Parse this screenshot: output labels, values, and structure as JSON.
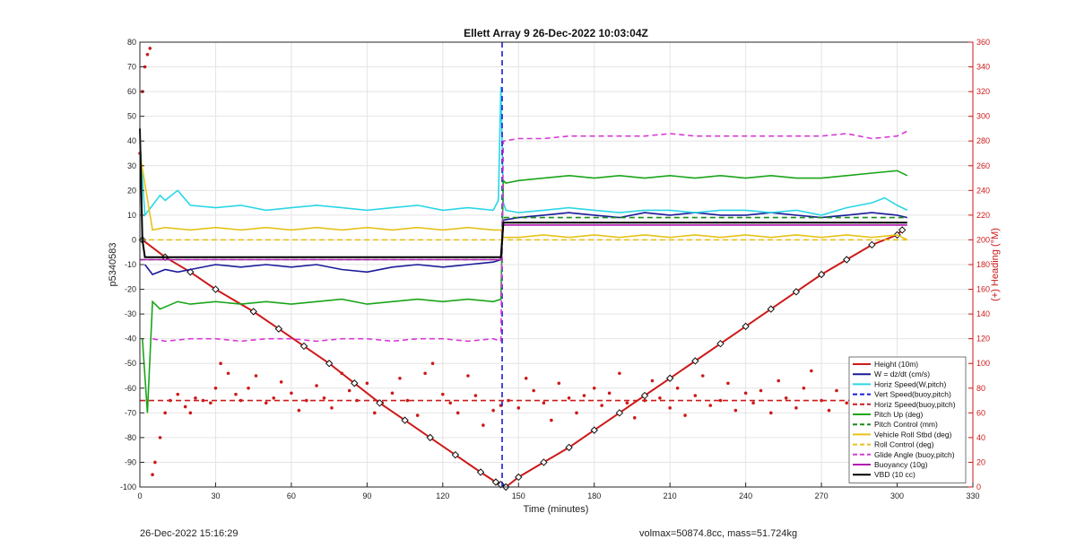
{
  "chart_data": {
    "type": "line",
    "title": "Ellett Array 9 26-Dec-2022 10:03:04Z",
    "xlabel": "Time (minutes)",
    "ylabel": "p5340583",
    "y2label": "(+) Heading (°M)",
    "xlim": [
      0,
      330
    ],
    "ylim": [
      -100,
      80
    ],
    "y2lim": [
      0,
      360
    ],
    "xticks": [
      0,
      30,
      60,
      90,
      120,
      150,
      180,
      210,
      240,
      270,
      300,
      330
    ],
    "yticks": [
      -100,
      -90,
      -80,
      -70,
      -60,
      -50,
      -40,
      -30,
      -20,
      -10,
      0,
      10,
      20,
      30,
      40,
      50,
      60,
      70,
      80
    ],
    "y2ticks": [
      0,
      20,
      40,
      60,
      80,
      100,
      120,
      140,
      160,
      180,
      200,
      220,
      240,
      260,
      280,
      300,
      320,
      340,
      360
    ],
    "grid": true,
    "legend_position": "bottom-right",
    "series": [
      {
        "name": "Height (10m)",
        "color": "#cc1a1a",
        "style": "solid",
        "marker": "diamond",
        "x": [
          1,
          10,
          20,
          30,
          45,
          55,
          65,
          75,
          85,
          95,
          105,
          115,
          125,
          135,
          141,
          143,
          145,
          150,
          160,
          170,
          180,
          190,
          200,
          210,
          220,
          230,
          240,
          250,
          260,
          270,
          280,
          290,
          300,
          302
        ],
        "y": [
          0,
          -7,
          -13,
          -20,
          -29,
          -36,
          -43,
          -50,
          -58,
          -66,
          -73,
          -80,
          -87,
          -94,
          -98,
          -99,
          -100,
          -96,
          -90,
          -84,
          -77,
          -70,
          -63,
          -56,
          -49,
          -42,
          -35,
          -28,
          -21,
          -14,
          -8,
          -2,
          2,
          4
        ]
      },
      {
        "name": "W = dz/dt (cm/s)",
        "color": "#1a1a9a",
        "style": "solid",
        "x": [
          2,
          5,
          10,
          15,
          20,
          30,
          40,
          50,
          60,
          70,
          80,
          90,
          100,
          110,
          120,
          130,
          140,
          143,
          144,
          150,
          160,
          170,
          180,
          190,
          200,
          210,
          220,
          230,
          240,
          250,
          260,
          270,
          280,
          290,
          300,
          304
        ],
        "y": [
          -10,
          -14,
          -12,
          -13,
          -12,
          -10,
          -11,
          -10,
          -11,
          -10,
          -12,
          -13,
          -11,
          -10,
          -11,
          -10,
          -9,
          -8,
          8,
          9,
          10,
          11,
          10,
          9,
          11,
          10,
          11,
          10,
          10,
          11,
          10,
          9,
          10,
          11,
          10,
          9
        ]
      },
      {
        "name": "Horiz Speed(W,pitch)",
        "color": "#2ad6e6",
        "style": "solid",
        "x": [
          0,
          2,
          5,
          8,
          10,
          15,
          20,
          30,
          40,
          50,
          60,
          70,
          80,
          90,
          100,
          110,
          120,
          130,
          140,
          142,
          143,
          144,
          145,
          150,
          160,
          170,
          180,
          190,
          200,
          210,
          220,
          230,
          240,
          250,
          260,
          270,
          280,
          290,
          295,
          300,
          304
        ],
        "y": [
          40,
          10,
          14,
          18,
          16,
          20,
          14,
          13,
          14,
          12,
          13,
          14,
          13,
          12,
          13,
          14,
          12,
          13,
          12,
          16,
          62,
          15,
          12,
          11,
          12,
          13,
          12,
          11,
          12,
          12,
          11,
          12,
          12,
          11,
          12,
          10,
          13,
          15,
          17,
          14,
          12
        ]
      },
      {
        "name": "Vert Speed(buoy,pitch)",
        "color": "#1a1ad6",
        "style": "dashed",
        "x": [
          143.5,
          143.5
        ],
        "y": [
          -100,
          80
        ]
      },
      {
        "name": "Horiz Speed(buoy,pitch)",
        "color": "#cc1a1a",
        "style": "dashed",
        "x": [
          0,
          304
        ],
        "y": [
          -65,
          -65
        ]
      },
      {
        "name": "Pitch Up (deg)",
        "color": "#1aa51a",
        "style": "solid",
        "x": [
          1,
          3,
          5,
          8,
          15,
          20,
          30,
          40,
          50,
          60,
          70,
          80,
          90,
          100,
          110,
          120,
          130,
          140,
          143,
          144,
          145,
          150,
          160,
          170,
          180,
          190,
          200,
          210,
          220,
          230,
          240,
          250,
          260,
          270,
          280,
          290,
          300,
          304
        ],
        "y": [
          -40,
          -70,
          -25,
          -28,
          -25,
          -26,
          -25,
          -26,
          -25,
          -26,
          -25,
          -24,
          -26,
          -25,
          -24,
          -25,
          -24,
          -25,
          -24,
          24,
          23,
          24,
          25,
          26,
          25,
          26,
          25,
          26,
          25,
          26,
          25,
          26,
          25,
          25,
          26,
          27,
          28,
          26
        ]
      },
      {
        "name": "Pitch Control (mm)",
        "color": "#1a8a1a",
        "style": "dashed",
        "x": [
          0,
          143,
          144,
          304
        ],
        "y": [
          -8,
          -8,
          9,
          9
        ]
      },
      {
        "name": "Vehicle Roll Stbd (deg)",
        "color": "#e6c21a",
        "style": "solid",
        "x": [
          0,
          5,
          10,
          20,
          30,
          40,
          50,
          60,
          70,
          80,
          90,
          100,
          110,
          120,
          130,
          140,
          143,
          144,
          150,
          160,
          170,
          180,
          190,
          200,
          210,
          220,
          230,
          240,
          250,
          260,
          270,
          280,
          290,
          300,
          304
        ],
        "y": [
          35,
          4,
          5,
          4,
          5,
          4,
          5,
          4,
          5,
          4,
          5,
          4,
          5,
          4,
          5,
          4,
          4,
          1,
          1,
          2,
          1,
          2,
          1,
          2,
          1,
          2,
          1,
          2,
          1,
          2,
          1,
          2,
          1,
          2,
          0
        ]
      },
      {
        "name": "Roll Control (deg)",
        "color": "#e6c21a",
        "style": "dashed",
        "x": [
          0,
          143,
          144,
          304
        ],
        "y": [
          0,
          0,
          0,
          0
        ]
      },
      {
        "name": "Glide Angle (buoy,pitch)",
        "color": "#d63ad6",
        "style": "dashed",
        "x": [
          5,
          10,
          20,
          30,
          40,
          50,
          60,
          70,
          80,
          90,
          100,
          110,
          120,
          130,
          140,
          143,
          144,
          150,
          160,
          170,
          180,
          190,
          200,
          210,
          220,
          230,
          240,
          250,
          260,
          270,
          280,
          290,
          300,
          304
        ],
        "y": [
          -40,
          -41,
          -40,
          -40,
          -41,
          -40,
          -40,
          -41,
          -40,
          -40,
          -41,
          -40,
          -40,
          -41,
          -40,
          -41,
          40,
          41,
          41,
          42,
          42,
          42,
          42,
          43,
          42,
          42,
          42,
          42,
          42,
          42,
          43,
          41,
          42,
          44
        ]
      },
      {
        "name": "Buoyancy (10g)",
        "color": "#b01ab0",
        "style": "solid",
        "x": [
          0,
          143,
          144,
          304
        ],
        "y": [
          -8,
          -8,
          6,
          6
        ]
      },
      {
        "name": "VBD (10 cc)",
        "color": "#000000",
        "style": "solid",
        "x": [
          0,
          1,
          2,
          143,
          144,
          304
        ],
        "y": [
          45,
          0,
          -7,
          -7,
          7,
          7
        ]
      }
    ],
    "heading_dots": {
      "color": "#cc1a1a",
      "axis": "right",
      "x": [
        0,
        1,
        2,
        3,
        4,
        5,
        6,
        8,
        10,
        12,
        15,
        18,
        20,
        22,
        25,
        28,
        30,
        32,
        35,
        38,
        40,
        43,
        46,
        50,
        53,
        56,
        60,
        63,
        66,
        70,
        73,
        76,
        80,
        83,
        86,
        90,
        93,
        96,
        100,
        103,
        106,
        110,
        113,
        116,
        120,
        123,
        126,
        130,
        133,
        136,
        140,
        143,
        146,
        150,
        153,
        156,
        160,
        163,
        166,
        170,
        173,
        176,
        180,
        183,
        186,
        190,
        193,
        196,
        200,
        203,
        206,
        210,
        213,
        216,
        220,
        223,
        226,
        230,
        233,
        236,
        240,
        243,
        246,
        250,
        253,
        256,
        260,
        263,
        266,
        270,
        273,
        276,
        280,
        283,
        286,
        290,
        293,
        296,
        300,
        303
      ],
      "y": [
        270,
        320,
        340,
        350,
        355,
        10,
        20,
        40,
        60,
        70,
        75,
        65,
        60,
        72,
        70,
        68,
        80,
        100,
        92,
        75,
        70,
        80,
        90,
        68,
        72,
        85,
        76,
        62,
        70,
        82,
        72,
        64,
        92,
        78,
        70,
        84,
        60,
        68,
        76,
        88,
        70,
        58,
        92,
        100,
        75,
        68,
        60,
        90,
        74,
        50,
        62,
        66,
        70,
        64,
        88,
        78,
        68,
        54,
        84,
        72,
        60,
        74,
        80,
        66,
        76,
        92,
        68,
        56,
        70,
        86,
        72,
        64,
        80,
        58,
        74,
        90,
        66,
        70,
        84,
        62,
        76,
        68,
        78,
        60,
        86,
        72,
        64,
        80,
        94,
        70,
        62,
        78,
        68,
        56,
        82,
        70,
        76,
        64,
        70,
        66
      ]
    },
    "legend": [
      "Height (10m)",
      "W = dz/dt (cm/s)",
      "Horiz Speed(W,pitch)",
      "Vert Speed(buoy,pitch)",
      "Horiz Speed(buoy,pitch)",
      "Pitch Up (deg)",
      "Pitch Control (mm)",
      "Vehicle Roll Stbd (deg)",
      "Roll Control (deg)",
      "Glide Angle (buoy,pitch)",
      "Buoyancy (10g)",
      "VBD (10 cc)"
    ]
  },
  "footer": {
    "left": "26-Dec-2022 15:16:29",
    "right": "volmax=50874.8cc, mass=51.724kg"
  }
}
